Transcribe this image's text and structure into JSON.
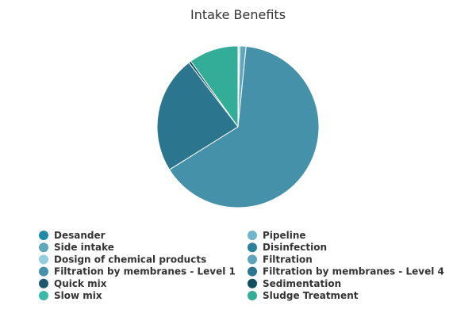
{
  "chart_data": {
    "type": "pie",
    "title": "Intake Benefits",
    "legend_position": "bottom",
    "series": [
      {
        "name": "Desander",
        "value": 0.15,
        "color": "#1f8aa8"
      },
      {
        "name": "Pipeline",
        "value": 0.25,
        "color": "#6fb6cc"
      },
      {
        "name": "Side intake",
        "value": 1.2,
        "color": "#5fa7bc"
      },
      {
        "name": "Disinfection",
        "value": 0.0,
        "color": "#2a7f99"
      },
      {
        "name": "Dosign of chemical products",
        "value": 0.0,
        "color": "#8fcfe0"
      },
      {
        "name": "Filtration",
        "value": 0.0,
        "color": "#5da5bd"
      },
      {
        "name": "Filtration by membranes - Level 1",
        "value": 64.5,
        "color": "#4591aa"
      },
      {
        "name": "Filtration by membranes - Level 4",
        "value": 23.5,
        "color": "#2b768e"
      },
      {
        "name": "Quick mix",
        "value": 0.0,
        "color": "#1e5870"
      },
      {
        "name": "Sedimentation",
        "value": 0.5,
        "color": "#0f4f5e"
      },
      {
        "name": "Slow mix",
        "value": 0.0,
        "color": "#3abaa6"
      },
      {
        "name": "Sludge Treatment",
        "value": 9.9,
        "color": "#33ad98"
      }
    ]
  }
}
